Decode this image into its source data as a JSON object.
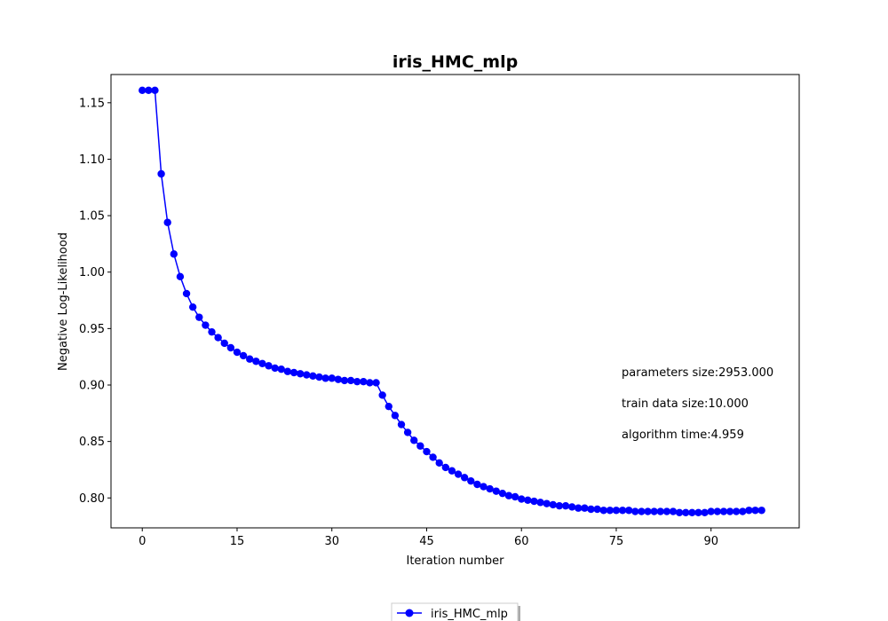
{
  "chart_data": {
    "type": "line",
    "title": "iris_HMC_mlp",
    "xlabel": "Iteration number",
    "ylabel": "Negative Log-Likelihood",
    "xlim": [
      -4.95,
      103.95
    ],
    "ylim": [
      0.7735,
      1.175
    ],
    "x_ticks": [
      0,
      15,
      30,
      45,
      60,
      75,
      90
    ],
    "y_ticks": [
      0.8,
      0.85,
      0.9,
      0.95,
      1.0,
      1.05,
      1.1,
      1.15
    ],
    "y_tick_labels": [
      "0.80",
      "0.85",
      "0.90",
      "0.95",
      "1.00",
      "1.05",
      "1.10",
      "1.15"
    ],
    "grid": false,
    "legend_position": "bottom-center",
    "series": [
      {
        "name": "iris_HMC_mlp",
        "color": "#0000ff",
        "marker": "circle",
        "x": [
          0,
          1,
          2,
          3,
          4,
          5,
          6,
          7,
          8,
          9,
          10,
          11,
          12,
          13,
          14,
          15,
          16,
          17,
          18,
          19,
          20,
          21,
          22,
          23,
          24,
          25,
          26,
          27,
          28,
          29,
          30,
          31,
          32,
          33,
          34,
          35,
          36,
          37,
          38,
          39,
          40,
          41,
          42,
          43,
          44,
          45,
          46,
          47,
          48,
          49,
          50,
          51,
          52,
          53,
          54,
          55,
          56,
          57,
          58,
          59,
          60,
          61,
          62,
          63,
          64,
          65,
          66,
          67,
          68,
          69,
          70,
          71,
          72,
          73,
          74,
          75,
          76,
          77,
          78,
          79,
          80,
          81,
          82,
          83,
          84,
          85,
          86,
          87,
          88,
          89,
          90,
          91,
          92,
          93,
          94,
          95,
          96,
          97,
          98
        ],
        "y": [
          1.161,
          1.161,
          1.161,
          1.087,
          1.044,
          1.016,
          0.996,
          0.981,
          0.969,
          0.96,
          0.953,
          0.947,
          0.942,
          0.937,
          0.933,
          0.929,
          0.926,
          0.923,
          0.921,
          0.919,
          0.917,
          0.915,
          0.914,
          0.912,
          0.911,
          0.91,
          0.909,
          0.908,
          0.907,
          0.906,
          0.906,
          0.905,
          0.904,
          0.904,
          0.903,
          0.903,
          0.902,
          0.902,
          0.891,
          0.881,
          0.873,
          0.865,
          0.858,
          0.851,
          0.846,
          0.841,
          0.836,
          0.831,
          0.827,
          0.824,
          0.821,
          0.818,
          0.815,
          0.812,
          0.81,
          0.808,
          0.806,
          0.804,
          0.802,
          0.801,
          0.799,
          0.798,
          0.797,
          0.796,
          0.795,
          0.794,
          0.793,
          0.793,
          0.792,
          0.791,
          0.791,
          0.79,
          0.79,
          0.789,
          0.789,
          0.789,
          0.789,
          0.789,
          0.788,
          0.788,
          0.788,
          0.788,
          0.788,
          0.788,
          0.788,
          0.787,
          0.787,
          0.787,
          0.787,
          0.787,
          0.788,
          0.788,
          0.788,
          0.788,
          0.788,
          0.788,
          0.789,
          0.789,
          0.789
        ]
      }
    ],
    "annotations": [
      "parameters size:2953.000",
      "train data size:10.000",
      "algorithm time:4.959"
    ]
  }
}
